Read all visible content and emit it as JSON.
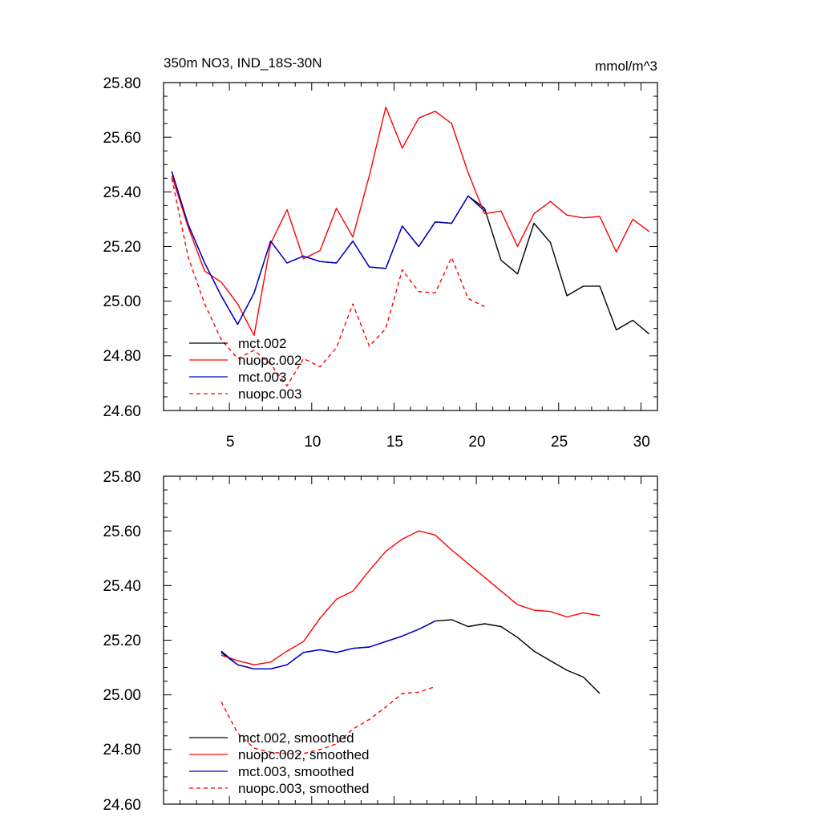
{
  "colors": {
    "mct002": "#000000",
    "nuopc002": "#ff0000",
    "mct003": "#0000cc",
    "nuopc003": "#ff0000"
  },
  "chart_data": [
    {
      "type": "line",
      "title": "350m NO3, IND_18S-30N",
      "units": "mmol/m^3",
      "xlim": [
        1,
        31
      ],
      "ylim": [
        24.6,
        25.8
      ],
      "xticks": [
        5,
        10,
        15,
        20,
        25,
        30
      ],
      "yticks": [
        24.6,
        24.8,
        25.0,
        25.2,
        25.4,
        25.6,
        25.8
      ],
      "ytick_labels": [
        "24.60",
        "24.80",
        "25.00",
        "25.20",
        "25.40",
        "25.60",
        "25.80"
      ],
      "series": [
        {
          "name": "mct.002",
          "color": "#000000",
          "dash": "solid",
          "x": [
            1.5,
            2.5,
            3.5,
            4.5,
            5.5,
            6.5,
            7.5,
            8.5,
            9.5,
            10.5,
            11.5,
            12.5,
            13.5,
            14.5,
            15.5,
            16.5,
            17.5,
            18.5,
            19.5,
            20.5,
            21.5,
            22.5,
            23.5,
            24.5,
            25.5,
            26.5,
            27.5,
            28.5,
            29.5,
            30.5
          ],
          "values": [
            25.475,
            25.28,
            25.14,
            25.02,
            24.915,
            25.03,
            25.22,
            25.14,
            25.165,
            25.145,
            25.14,
            25.22,
            25.125,
            25.12,
            25.275,
            25.2,
            25.29,
            25.285,
            25.385,
            25.34,
            25.15,
            25.1,
            25.285,
            25.215,
            25.02,
            25.055,
            25.055,
            24.895,
            24.93,
            24.88
          ]
        },
        {
          "name": "nuopc.002",
          "color": "#ff0000",
          "dash": "solid",
          "x": [
            1.5,
            2.5,
            3.5,
            4.5,
            5.5,
            6.5,
            7.5,
            8.5,
            9.5,
            10.5,
            11.5,
            12.5,
            13.5,
            14.5,
            15.5,
            16.5,
            17.5,
            18.5,
            19.5,
            20.5,
            21.5,
            22.5,
            23.5,
            24.5,
            25.5,
            26.5,
            27.5,
            28.5,
            29.5,
            30.5
          ],
          "values": [
            25.46,
            25.27,
            25.11,
            25.07,
            24.99,
            24.875,
            25.21,
            25.335,
            25.155,
            25.185,
            25.34,
            25.235,
            25.46,
            25.71,
            25.56,
            25.67,
            25.695,
            25.65,
            25.47,
            25.32,
            25.33,
            25.2,
            25.32,
            25.365,
            25.315,
            25.305,
            25.31,
            25.18,
            25.3,
            25.255
          ]
        },
        {
          "name": "mct.003",
          "color": "#0000cc",
          "dash": "solid",
          "x": [
            1.5,
            2.5,
            3.5,
            4.5,
            5.5,
            6.5,
            7.5,
            8.5,
            9.5,
            10.5,
            11.5,
            12.5,
            13.5,
            14.5,
            15.5,
            16.5,
            17.5,
            18.5,
            19.5,
            20.5
          ],
          "values": [
            25.475,
            25.28,
            25.14,
            25.02,
            24.915,
            25.03,
            25.22,
            25.14,
            25.165,
            25.145,
            25.14,
            25.22,
            25.125,
            25.12,
            25.275,
            25.2,
            25.29,
            25.285,
            25.385,
            25.33
          ]
        },
        {
          "name": "nuopc.003",
          "color": "#ff0000",
          "dash": "dashed",
          "x": [
            1.5,
            2.5,
            3.5,
            4.5,
            5.5,
            6.5,
            7.5,
            8.5,
            9.5,
            10.5,
            11.5,
            12.5,
            13.5,
            14.5,
            15.5,
            16.5,
            17.5,
            18.5,
            19.5,
            20.5
          ],
          "values": [
            25.45,
            25.16,
            24.99,
            24.86,
            24.79,
            24.82,
            24.77,
            24.69,
            24.79,
            24.76,
            24.83,
            24.99,
            24.835,
            24.9,
            25.115,
            25.035,
            25.03,
            25.16,
            25.01,
            24.98
          ]
        }
      ]
    },
    {
      "type": "line",
      "title": "",
      "units": "",
      "xlim": [
        1,
        31
      ],
      "ylim": [
        24.6,
        25.8
      ],
      "xticks": [
        5,
        10,
        15,
        20,
        25,
        30
      ],
      "yticks": [
        24.6,
        24.8,
        25.0,
        25.2,
        25.4,
        25.6,
        25.8
      ],
      "ytick_labels": [
        "24.60",
        "24.80",
        "25.00",
        "25.20",
        "25.40",
        "25.60",
        "25.80"
      ],
      "series": [
        {
          "name": "mct.002, smoothed",
          "color": "#000000",
          "dash": "solid",
          "x": [
            4.5,
            5.5,
            6.5,
            7.5,
            8.5,
            9.5,
            10.5,
            11.5,
            12.5,
            13.5,
            14.5,
            15.5,
            16.5,
            17.5,
            18.5,
            19.5,
            20.5,
            21.5,
            22.5,
            23.5,
            24.5,
            25.5,
            26.5,
            27.5
          ],
          "values": [
            25.155,
            25.11,
            25.095,
            25.095,
            25.11,
            25.155,
            25.165,
            25.155,
            25.17,
            25.175,
            25.195,
            25.215,
            25.24,
            25.27,
            25.275,
            25.25,
            25.26,
            25.25,
            25.21,
            25.16,
            25.125,
            25.09,
            25.065,
            25.005
          ]
        },
        {
          "name": "nuopc.002, smoothed",
          "color": "#ff0000",
          "dash": "solid",
          "x": [
            4.5,
            5.5,
            6.5,
            7.5,
            8.5,
            9.5,
            10.5,
            11.5,
            12.5,
            13.5,
            14.5,
            15.5,
            16.5,
            17.5,
            18.5,
            19.5,
            20.5,
            21.5,
            22.5,
            23.5,
            24.5,
            25.5,
            26.5,
            27.5
          ],
          "values": [
            25.145,
            25.125,
            25.11,
            25.12,
            25.16,
            25.195,
            25.28,
            25.35,
            25.38,
            25.455,
            25.525,
            25.57,
            25.6,
            25.585,
            25.53,
            25.48,
            25.43,
            25.38,
            25.33,
            25.31,
            25.305,
            25.285,
            25.3,
            25.29
          ]
        },
        {
          "name": "mct.003, smoothed",
          "color": "#0000cc",
          "dash": "solid",
          "x": [
            4.5,
            5.5,
            6.5,
            7.5,
            8.5,
            9.5,
            10.5,
            11.5,
            12.5,
            13.5,
            14.5,
            15.5,
            16.5,
            17.5
          ],
          "values": [
            25.16,
            25.11,
            25.095,
            25.095,
            25.11,
            25.155,
            25.165,
            25.155,
            25.17,
            25.175,
            25.195,
            25.215,
            25.24,
            25.27
          ]
        },
        {
          "name": "nuopc.003, smoothed",
          "color": "#ff0000",
          "dash": "dashed",
          "x": [
            4.5,
            5.5,
            6.5,
            7.5,
            8.5,
            9.5,
            10.5,
            11.5,
            12.5,
            13.5,
            14.5,
            15.5,
            16.5,
            17.5
          ],
          "values": [
            24.975,
            24.86,
            24.805,
            24.79,
            24.785,
            24.785,
            24.8,
            24.82,
            24.875,
            24.91,
            24.955,
            25.005,
            25.01,
            25.03
          ]
        }
      ]
    }
  ]
}
